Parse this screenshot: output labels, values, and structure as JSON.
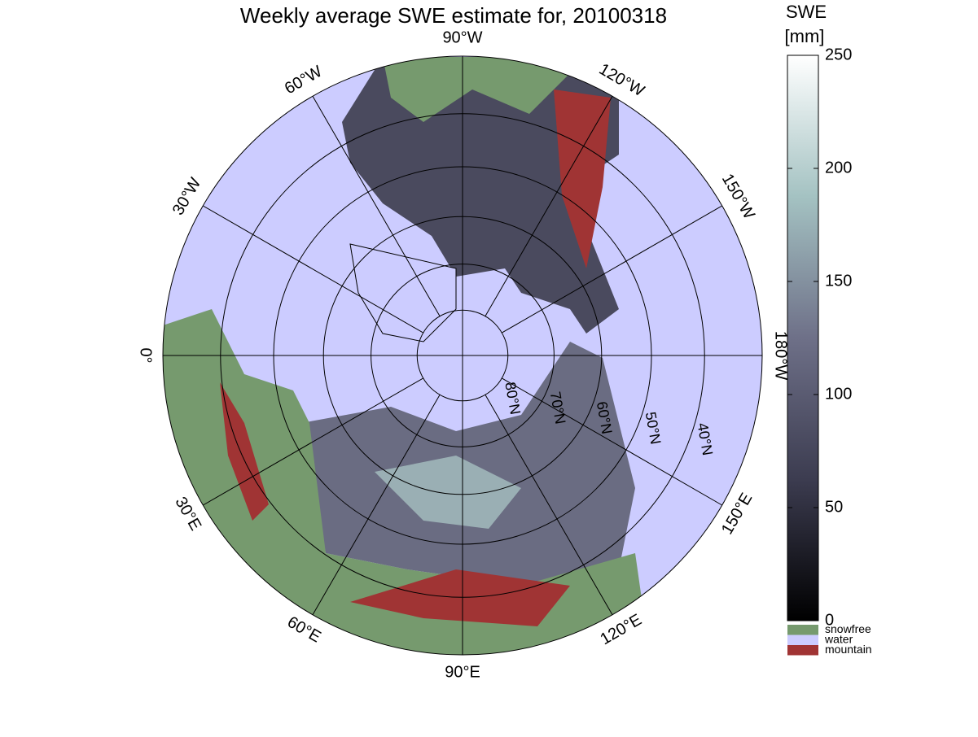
{
  "title": "Weekly average SWE estimate for, 20100318",
  "meridians": [
    {
      "value": -90,
      "label": "90°W"
    },
    {
      "value": -60,
      "label": "60°W"
    },
    {
      "value": -30,
      "label": "30°W"
    },
    {
      "value": 0,
      "label": "0°"
    },
    {
      "value": 30,
      "label": "30°E"
    },
    {
      "value": 60,
      "label": "60°E"
    },
    {
      "value": 90,
      "label": "90°E"
    },
    {
      "value": 120,
      "label": "120°E"
    },
    {
      "value": 150,
      "label": "150°E"
    },
    {
      "value": 180,
      "label": "180°W"
    },
    {
      "value": -150,
      "label": "150°W"
    },
    {
      "value": -120,
      "label": "120°W"
    }
  ],
  "parallels": [
    {
      "value": 80,
      "label": "80°N"
    },
    {
      "value": 70,
      "label": "70°N"
    },
    {
      "value": 60,
      "label": "60°N"
    },
    {
      "value": 50,
      "label": "50°N"
    },
    {
      "value": 40,
      "label": "40°N"
    }
  ],
  "lat_limit": 30,
  "colorbar": {
    "title": [
      "SWE",
      "[mm]"
    ],
    "lim": [
      0,
      250
    ],
    "ticks": [
      0,
      50,
      100,
      150,
      200,
      250
    ]
  },
  "legend": [
    {
      "label": "snowfree",
      "color": "#769a6e"
    },
    {
      "label": "water",
      "color": "#ccccff"
    },
    {
      "label": "mountain",
      "color": "#a03434"
    }
  ]
}
